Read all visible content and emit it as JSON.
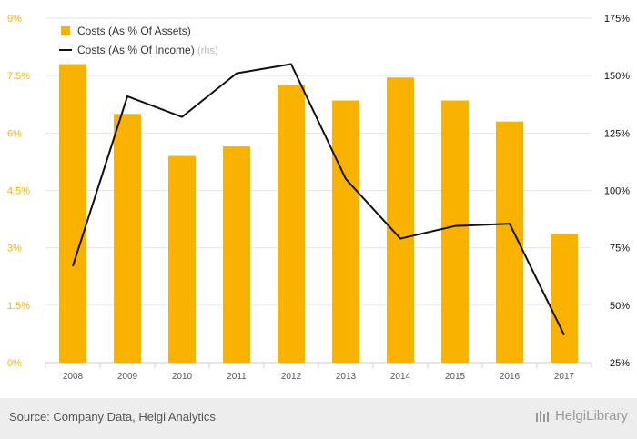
{
  "chart_data": {
    "type": "bar",
    "categories": [
      "2008",
      "2009",
      "2010",
      "2011",
      "2012",
      "2013",
      "2014",
      "2015",
      "2016",
      "2017"
    ],
    "series": [
      {
        "name": "Costs (As % Of Assets)",
        "type": "bar",
        "axis": "left",
        "values": [
          7.8,
          6.5,
          5.4,
          5.65,
          7.25,
          6.85,
          7.45,
          6.85,
          6.3,
          3.35
        ]
      },
      {
        "name": "Costs (As % Of Income)",
        "type": "line",
        "axis": "right",
        "values": [
          67,
          141,
          132,
          151,
          155,
          105,
          79,
          84.5,
          85.5,
          37
        ]
      }
    ],
    "legend": {
      "items": [
        "Costs (As % Of Assets)",
        "Costs (As % Of Income)"
      ],
      "rhs_note": "(rhs)",
      "placement": "top-left"
    },
    "y_left": {
      "ticks": [
        "0%",
        "1.5%",
        "3%",
        "4.5%",
        "6%",
        "7.5%",
        "9%"
      ],
      "ylim": [
        0,
        9
      ]
    },
    "y_right": {
      "ticks": [
        "25%",
        "50%",
        "75%",
        "100%",
        "125%",
        "150%",
        "175%"
      ],
      "ylim": [
        25,
        175
      ]
    },
    "grid": true,
    "colors": {
      "bar": "#f9b200",
      "line": "#111111",
      "left_axis_text": "#f9b200",
      "right_axis_text": "#111111"
    }
  },
  "footer": {
    "source": "Source: Company Data, Helgi Analytics",
    "brand": "HelgiLibrary"
  }
}
